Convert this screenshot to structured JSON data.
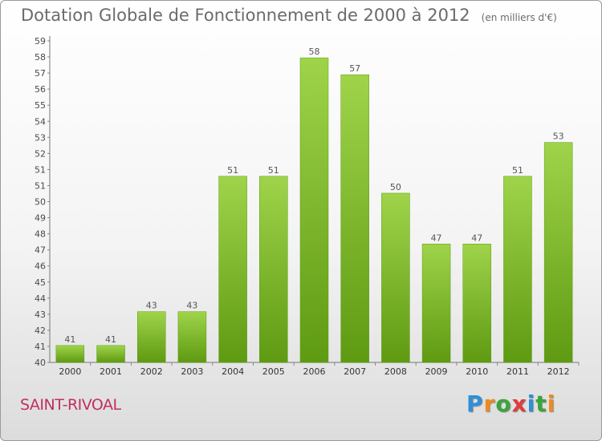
{
  "chart_data": {
    "type": "bar",
    "title": "Dotation Globale de Fonctionnement de 2000 à 2012",
    "unit_note": "(en milliers d'€)",
    "categories": [
      "2000",
      "2001",
      "2002",
      "2003",
      "2004",
      "2005",
      "2006",
      "2007",
      "2008",
      "2009",
      "2010",
      "2011",
      "2012"
    ],
    "values": [
      41,
      41,
      43,
      43,
      51,
      51,
      58,
      57,
      50,
      47,
      47,
      51,
      53
    ],
    "ylim": [
      40,
      59
    ],
    "yticks": [
      "40",
      "41",
      "42",
      "43",
      "44",
      "45",
      "46",
      "47",
      "48",
      "49",
      "50",
      "51",
      "51",
      "52",
      "53",
      "54",
      "55",
      "56",
      "57",
      "58",
      "59"
    ],
    "xlabel": "",
    "ylabel": "",
    "grid": false,
    "bar_color": "#7cbf2e",
    "bar_color_light": "#9fd44a",
    "bar_color_dark": "#5e9a12"
  },
  "footer": {
    "commune": "SAINT-RIVOAL",
    "logo_letters": [
      "P",
      "r",
      "o",
      "x",
      "i",
      "t",
      "i"
    ],
    "logo_colors": [
      "#2f8fd8",
      "#f08a1c",
      "#3aa53a",
      "#e03c3c",
      "#2f8fd8",
      "#3aa53a",
      "#f08a1c"
    ]
  }
}
